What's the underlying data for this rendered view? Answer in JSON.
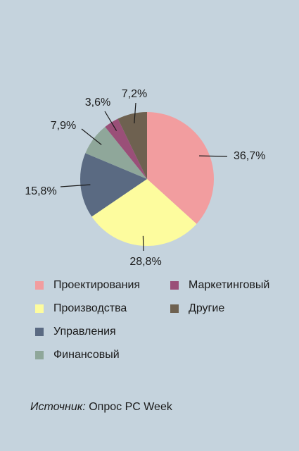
{
  "chart_data": {
    "type": "pie",
    "title": "",
    "slices": [
      {
        "label": "Проектирования",
        "value": 36.7,
        "value_label": "36,7%",
        "color": "#f29d9f"
      },
      {
        "label": "Производства",
        "value": 28.8,
        "value_label": "28,8%",
        "color": "#fdfc9e"
      },
      {
        "label": "Управления",
        "value": 15.8,
        "value_label": "15,8%",
        "color": "#5a6a82"
      },
      {
        "label": "Финансовый",
        "value": 7.9,
        "value_label": "7,9%",
        "color": "#8fa79a"
      },
      {
        "label": "Маркетинговый",
        "value": 3.6,
        "value_label": "3,6%",
        "color": "#9a4f78"
      },
      {
        "label": "Другие",
        "value": 7.2,
        "value_label": "7,2%",
        "color": "#6e6150"
      }
    ],
    "legend_placement": "bottom"
  },
  "footer": {
    "source_label": "Источник:",
    "source_text": "Опрос PC Week"
  }
}
